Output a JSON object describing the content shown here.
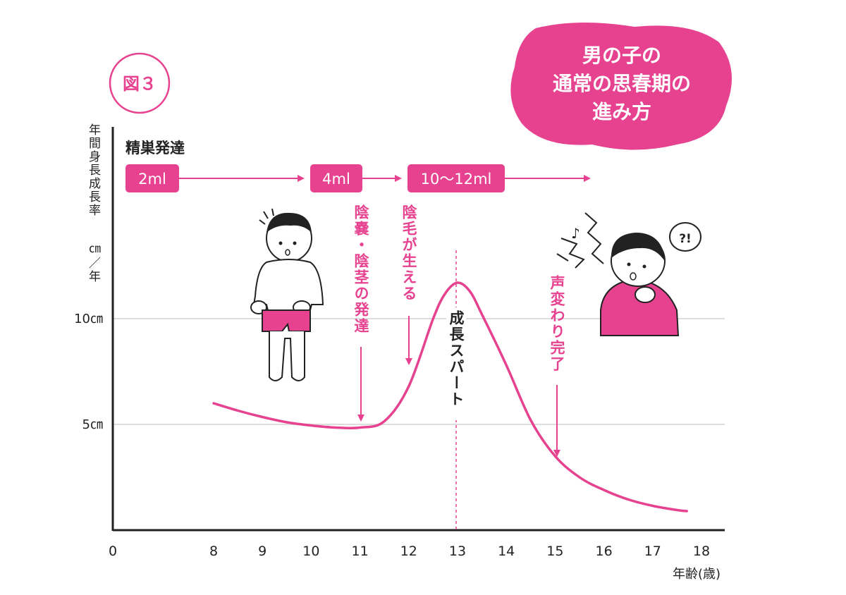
{
  "figure_label": "図３",
  "title_lines": [
    "男の子の",
    "通常の思春期の",
    "進み方"
  ],
  "yaxis_label": "年間身長成長率",
  "yaxis_unit": "㎝／年",
  "xaxis_label": "年齢(歳)",
  "origin_label": "0",
  "sperm_row_label": "精巣発達",
  "stages": [
    "2ml",
    "4ml",
    "10〜12ml"
  ],
  "events": [
    {
      "text": "陰嚢・陰茎の発達",
      "age": 11
    },
    {
      "text": "陰毛が生える",
      "age": 12
    },
    {
      "text": "成長スパート",
      "age": 13
    },
    {
      "text": "声変わり完了",
      "age": 15
    }
  ],
  "colors": {
    "accent": "#e6428f",
    "axis": "#222222",
    "grid": "#dddddd",
    "text": "#222222"
  },
  "chart_data": {
    "type": "line",
    "title": "",
    "xlabel": "年齢(歳)",
    "ylabel": "年間身長成長率 ㎝／年",
    "xlim": [
      7.0,
      18.0
    ],
    "ylim": [
      0,
      17
    ],
    "x_ticks": [
      "8",
      "9",
      "10",
      "11",
      "12",
      "13",
      "14",
      "15",
      "16",
      "17",
      "18"
    ],
    "y_ticks": [
      {
        "value": 5,
        "label": "5㎝"
      },
      {
        "value": 10,
        "label": "10㎝"
      }
    ],
    "grid": true,
    "series": [
      {
        "x": [
          8,
          8.5,
          9,
          9.5,
          10,
          10.5,
          11,
          11.5,
          12,
          12.5,
          12.75,
          13,
          13.25,
          13.5,
          14,
          14.5,
          15,
          15.5,
          16,
          16.5,
          17,
          17.5,
          17.7
        ],
        "y": [
          6.0,
          5.65,
          5.35,
          5.1,
          4.95,
          4.85,
          4.85,
          5.15,
          6.8,
          10.0,
          11.2,
          11.7,
          11.3,
          10.2,
          7.8,
          5.2,
          3.5,
          2.5,
          1.9,
          1.45,
          1.15,
          0.95,
          0.9
        ]
      }
    ]
  }
}
